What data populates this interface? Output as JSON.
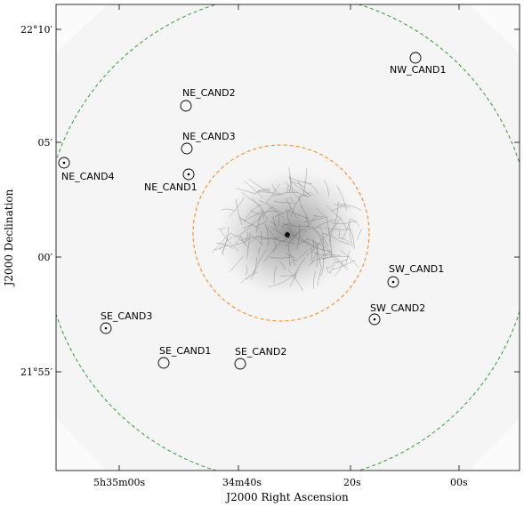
{
  "figure": {
    "xlabel": "J2000 Right Ascension",
    "ylabel": "J2000 Declination",
    "x_ticks": [
      "5h35m00s",
      "34m40s",
      "20s",
      "00s"
    ],
    "y_ticks": [
      "22°10′",
      "05′",
      "00′",
      "21°55′"
    ]
  },
  "circles": {
    "outer": {
      "color": "#2ca02c",
      "style": "dashed"
    },
    "inner": {
      "color": "#ff7f0e",
      "style": "dashed"
    }
  },
  "candidates": [
    {
      "name": "NW_CAND1",
      "dot": false
    },
    {
      "name": "NE_CAND2",
      "dot": false
    },
    {
      "name": "NE_CAND3",
      "dot": false
    },
    {
      "name": "NE_CAND4",
      "dot": true
    },
    {
      "name": "NE_CAND1",
      "dot": true
    },
    {
      "name": "SW_CAND1",
      "dot": true
    },
    {
      "name": "SW_CAND2",
      "dot": true
    },
    {
      "name": "SE_CAND3",
      "dot": true
    },
    {
      "name": "SE_CAND1",
      "dot": false
    },
    {
      "name": "SE_CAND2",
      "dot": false
    }
  ]
}
